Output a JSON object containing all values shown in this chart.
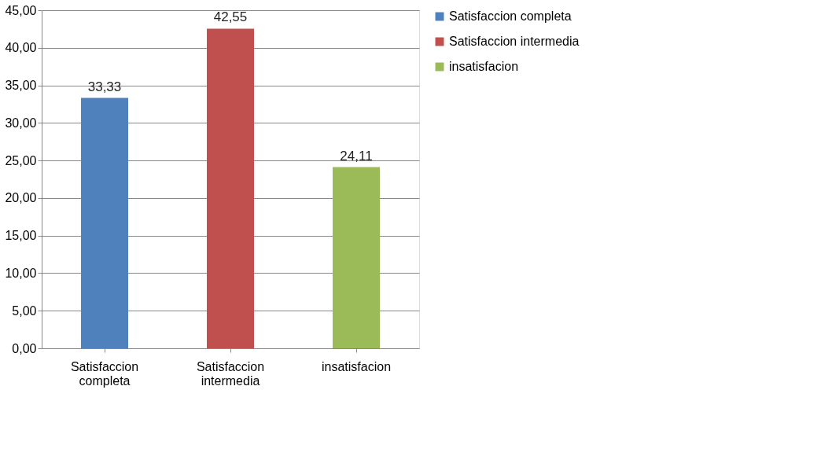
{
  "chart_data": {
    "type": "bar",
    "categories": [
      "Satisfaccion completa",
      "Satisfaccion intermedia",
      "insatisfacion"
    ],
    "series": [
      {
        "name": "Satisfaccion completa",
        "color": "#4f81bd",
        "values": [
          33.33,
          null,
          null
        ],
        "value_labels": [
          "33,33",
          null,
          null
        ]
      },
      {
        "name": "Satisfaccion intermedia",
        "color": "#c0504d",
        "values": [
          null,
          42.55,
          null
        ],
        "value_labels": [
          null,
          "42,55",
          null
        ]
      },
      {
        "name": "insatisfacion",
        "color": "#9bbb59",
        "values": [
          null,
          null,
          24.11
        ],
        "value_labels": [
          null,
          null,
          "24,11"
        ]
      }
    ],
    "ylim": [
      0,
      45
    ],
    "yticks": [
      {
        "value": 0,
        "label": "0,00"
      },
      {
        "value": 5,
        "label": "5,00"
      },
      {
        "value": 10,
        "label": "10,00"
      },
      {
        "value": 15,
        "label": "15,00"
      },
      {
        "value": 20,
        "label": "20,00"
      },
      {
        "value": 25,
        "label": "25,00"
      },
      {
        "value": 30,
        "label": "30,00"
      },
      {
        "value": 35,
        "label": "35,00"
      },
      {
        "value": 40,
        "label": "40,00"
      },
      {
        "value": 45,
        "label": "45,00"
      }
    ],
    "grid": "y",
    "legend": "right"
  }
}
